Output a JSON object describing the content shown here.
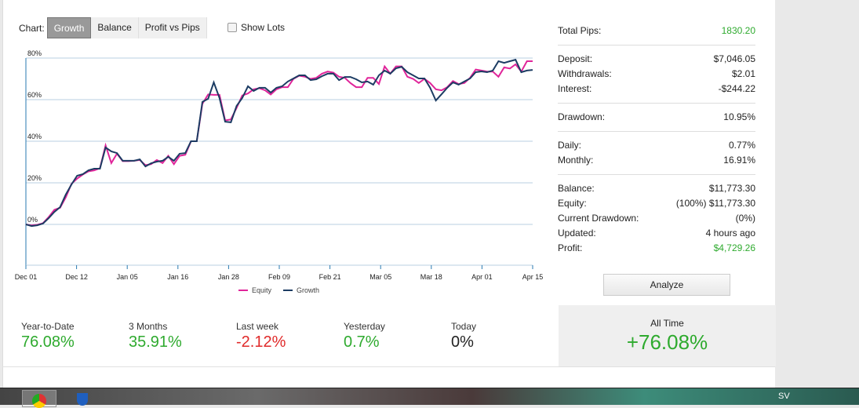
{
  "toolbar": {
    "chart_label": "Chart:",
    "tabs": [
      "Growth",
      "Balance",
      "Profit vs Pips"
    ],
    "show_lots": "Show Lots"
  },
  "chart_data": {
    "type": "line",
    "ylim": [
      -10,
      80
    ],
    "yticks": [
      "80%",
      "60%",
      "40%",
      "20%",
      "0%"
    ],
    "ytick_values": [
      80,
      60,
      40,
      20,
      0
    ],
    "xticks": [
      "Dec 01",
      "Dec 12",
      "Jan 05",
      "Jan 16",
      "Jan 28",
      "Feb 09",
      "Feb 21",
      "Mar 05",
      "Mar 18",
      "Apr 01",
      "Apr 15"
    ],
    "legend": [
      "Equity",
      "Growth"
    ],
    "colors": {
      "Equity": "#e0259a",
      "Growth": "#1c3c63"
    },
    "series": [
      {
        "name": "Equity",
        "values": [
          0,
          -0.5,
          -0.2,
          0.6,
          3.5,
          7,
          8,
          13,
          19.5,
          22,
          24,
          25.5,
          26,
          27,
          38,
          29.5,
          34,
          30.4,
          30.4,
          30.6,
          31,
          28.5,
          29,
          31,
          29.5,
          33,
          29,
          33,
          33.5,
          40,
          40,
          58,
          62.5,
          62.3,
          62.3,
          50,
          50.5,
          56,
          62,
          63,
          65,
          65.5,
          64.5,
          62.5,
          65,
          66,
          66,
          70,
          71.5,
          71,
          70,
          70.5,
          72.5,
          73.5,
          73,
          71,
          70.5,
          68,
          66,
          66,
          70.5,
          70.5,
          67.5,
          76,
          72.5,
          76,
          76,
          71,
          70,
          68,
          70,
          68,
          65,
          64.5,
          66,
          69,
          67.5,
          68,
          70.5,
          74.5,
          74,
          73.5,
          73.5,
          71,
          75.5,
          75,
          77,
          73.5,
          78.5,
          78.5
        ]
      },
      {
        "name": "Growth",
        "values": [
          0,
          -0.8,
          -0.4,
          0.4,
          3,
          6,
          8.3,
          14.3,
          19.2,
          23.4,
          24.2,
          26,
          26.8,
          26.8,
          37,
          35.1,
          34.3,
          30.6,
          30.6,
          30.6,
          31.3,
          27.9,
          29.4,
          30.2,
          30.6,
          32.5,
          30.6,
          34,
          34.3,
          40,
          40,
          58.9,
          60.4,
          68.3,
          60.8,
          49.4,
          49.1,
          57,
          60.8,
          66.4,
          64.2,
          65.7,
          65.7,
          63.4,
          65.7,
          66.4,
          68.7,
          70.2,
          71.7,
          71.7,
          69.4,
          69.8,
          71.3,
          72.5,
          72.5,
          69.4,
          70.9,
          70.9,
          69.8,
          68.3,
          68.7,
          67.2,
          71.7,
          74,
          72.5,
          75.1,
          75.8,
          73.2,
          71.7,
          70.2,
          70.2,
          65.7,
          59.6,
          62.6,
          65.7,
          68.3,
          67.2,
          68.7,
          70.2,
          73.2,
          73.6,
          73.2,
          74,
          78.5,
          77.7,
          78.5,
          79.2,
          73.2,
          74,
          74.3
        ]
      }
    ]
  },
  "stats": {
    "total_pips": {
      "label": "Total Pips:",
      "value": "1830.20"
    },
    "deposit": {
      "label": "Deposit:",
      "value": "$7,046.05"
    },
    "withdrawals": {
      "label": "Withdrawals:",
      "value": "$2.01"
    },
    "interest": {
      "label": "Interest:",
      "value": "-$244.22"
    },
    "drawdown": {
      "label": "Drawdown:",
      "value": "10.95%"
    },
    "daily": {
      "label": "Daily:",
      "value": "0.77%"
    },
    "monthly": {
      "label": "Monthly:",
      "value": "16.91%"
    },
    "balance": {
      "label": "Balance:",
      "value": "$11,773.30"
    },
    "equity": {
      "label": "Equity:",
      "value": "(100%) $11,773.30"
    },
    "current_drawdown": {
      "label": "Current Drawdown:",
      "value": "(0%)"
    },
    "updated": {
      "label": "Updated:",
      "value": "4 hours ago"
    },
    "profit": {
      "label": "Profit:",
      "value": "$4,729.26"
    }
  },
  "analyze_label": "Analyze",
  "periods": [
    {
      "label": "Year-to-Date",
      "value": "76.08%"
    },
    {
      "label": "3 Months",
      "value": "35.91%"
    },
    {
      "label": "Last week",
      "value": "-2.12%"
    },
    {
      "label": "Yesterday",
      "value": "0.7%"
    },
    {
      "label": "Today",
      "value": "0%"
    }
  ],
  "all_time": {
    "label": "All Time",
    "value": "+76.08%"
  },
  "taskbar": {
    "language": "SV"
  }
}
